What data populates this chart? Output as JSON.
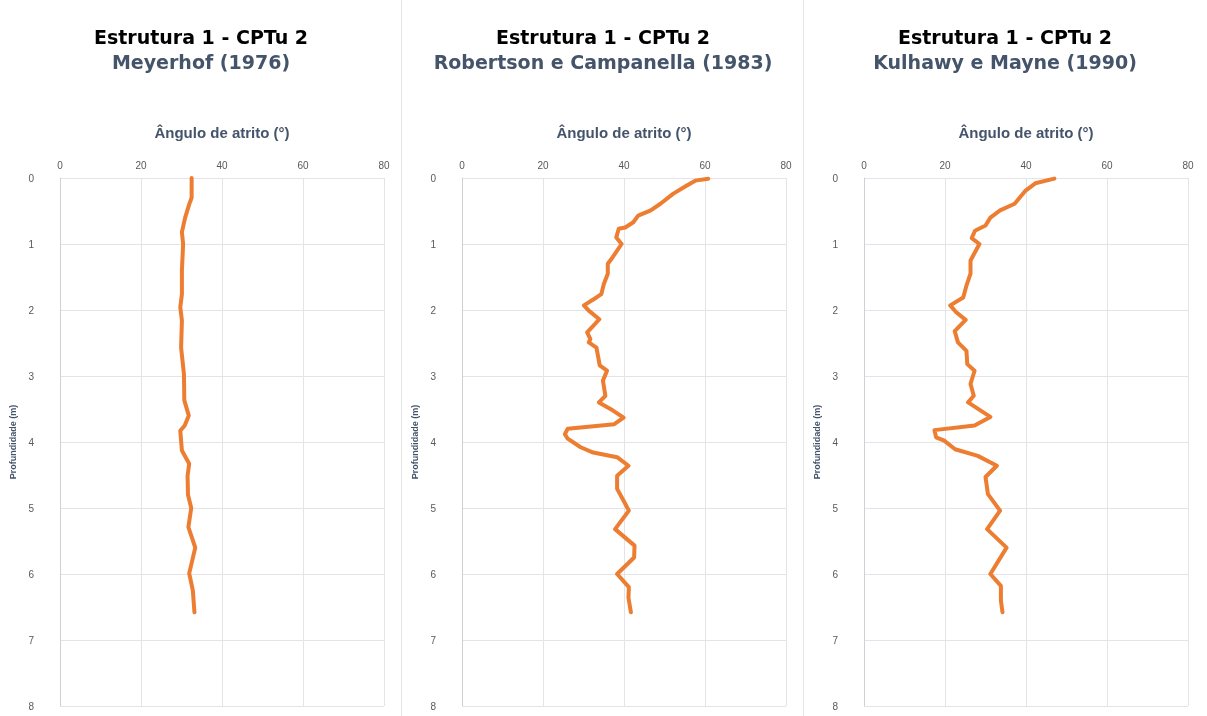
{
  "chart_data": [
    {
      "type": "line",
      "title": "Estrutura 1 - CPTu 2",
      "subtitle": "Meyerhof (1976)",
      "xlabel": "Ângulo de atrito (°)",
      "ylabel": "Profundidade (m)",
      "xlim": [
        0,
        80
      ],
      "xticks": [
        0,
        20,
        40,
        60,
        80
      ],
      "ylim": [
        8,
        0
      ],
      "yticks": [
        0,
        1,
        2,
        3,
        4,
        5,
        6,
        7,
        8
      ],
      "grid": true,
      "marker": "none",
      "line_style": "solid",
      "series": [
        {
          "color": "#ed7d31",
          "x": [
            32.5,
            32.5,
            31.9,
            30.9,
            30.1,
            30.4,
            30.1,
            30.1,
            29.7,
            30.1,
            29.9,
            30.6,
            30.7,
            31.8,
            30.8,
            29.7,
            30.1,
            31.9,
            31.5,
            31.6,
            32.4,
            31.7,
            33.4,
            31.9,
            32.8,
            33.2
          ],
          "values": [
            0,
            0.3,
            0.4,
            0.6,
            0.82,
            1.0,
            1.4,
            1.76,
            1.96,
            2.16,
            2.57,
            2.97,
            3.37,
            3.6,
            3.75,
            3.83,
            4.13,
            4.33,
            4.51,
            4.8,
            5.0,
            5.29,
            5.6,
            5.99,
            6.25,
            6.58
          ]
        }
      ]
    },
    {
      "type": "line",
      "title": "Estrutura 1 - CPTu 2",
      "subtitle": "Robertson e Campanella (1983)",
      "xlabel": "Ângulo de atrito (°)",
      "ylabel": "Profundidade (m)",
      "xlim": [
        0,
        80
      ],
      "xticks": [
        0,
        20,
        40,
        60,
        80
      ],
      "ylim": [
        8,
        0
      ],
      "yticks": [
        0,
        1,
        2,
        3,
        4,
        5,
        6,
        7,
        8
      ],
      "grid": true,
      "marker": "none",
      "line_style": "solid",
      "series": [
        {
          "color": "#ed7d31",
          "x": [
            60.8,
            57.6,
            55.3,
            52.1,
            49.0,
            46.6,
            43.5,
            42.3,
            40.3,
            38.7,
            38.1,
            39.4,
            37.2,
            36.0,
            36.0,
            35.0,
            34.4,
            33.2,
            30.1,
            31.3,
            33.9,
            32.4,
            30.9,
            31.7,
            31.3,
            33.2,
            33.8,
            34.0,
            35.8,
            34.8,
            35.4,
            33.8,
            37.2,
            39.9,
            37.6,
            26.1,
            25.4,
            26.1,
            29.3,
            32.4,
            38.3,
            41.1,
            38.3,
            38.3,
            39.9,
            41.2,
            37.8,
            42.6,
            42.5,
            38.3,
            41.2,
            41.1,
            41.7
          ],
          "values": [
            0.01,
            0.04,
            0.12,
            0.24,
            0.39,
            0.49,
            0.57,
            0.67,
            0.75,
            0.77,
            0.9,
            1.0,
            1.2,
            1.3,
            1.45,
            1.61,
            1.76,
            1.81,
            1.93,
            2.01,
            2.14,
            2.24,
            2.34,
            2.44,
            2.49,
            2.57,
            2.77,
            2.84,
            2.92,
            3.07,
            3.3,
            3.4,
            3.52,
            3.63,
            3.73,
            3.8,
            3.88,
            3.95,
            4.08,
            4.16,
            4.23,
            4.36,
            4.51,
            4.71,
            4.89,
            5.04,
            5.32,
            5.57,
            5.75,
            6.0,
            6.2,
            6.36,
            6.58
          ]
        }
      ]
    },
    {
      "type": "line",
      "title": "Estrutura 1 - CPTu 2",
      "subtitle": "Kulhawy e Mayne (1990)",
      "xlabel": "Ângulo de atrito (°)",
      "ylabel": "Profundidade (m)",
      "xlim": [
        0,
        80
      ],
      "xticks": [
        0,
        20,
        40,
        60,
        80
      ],
      "ylim": [
        8,
        0
      ],
      "yticks": [
        0,
        1,
        2,
        3,
        4,
        5,
        6,
        7,
        8
      ],
      "grid": true,
      "marker": "none",
      "line_style": "solid",
      "series": [
        {
          "color": "#ed7d31",
          "x": [
            47.0,
            42.3,
            39.9,
            37.2,
            33.6,
            31.2,
            30.0,
            27.4,
            26.6,
            28.5,
            26.3,
            26.3,
            25.3,
            24.5,
            21.3,
            22.7,
            25.1,
            22.4,
            23.2,
            25.3,
            25.5,
            27.3,
            26.3,
            27.1,
            25.7,
            31.2,
            27.3,
            17.4,
            17.8,
            19.8,
            22.5,
            28.1,
            32.8,
            30.0,
            30.6,
            33.6,
            30.4,
            35.2,
            31.2,
            33.8,
            33.8,
            34.2
          ],
          "values": [
            0.01,
            0.08,
            0.19,
            0.39,
            0.49,
            0.6,
            0.72,
            0.8,
            0.91,
            1.0,
            1.25,
            1.45,
            1.63,
            1.81,
            1.93,
            2.03,
            2.15,
            2.32,
            2.49,
            2.62,
            2.82,
            2.92,
            3.12,
            3.3,
            3.4,
            3.62,
            3.75,
            3.82,
            3.93,
            3.98,
            4.11,
            4.21,
            4.36,
            4.53,
            4.79,
            5.04,
            5.32,
            5.6,
            6.0,
            6.18,
            6.4,
            6.58
          ]
        }
      ]
    }
  ]
}
